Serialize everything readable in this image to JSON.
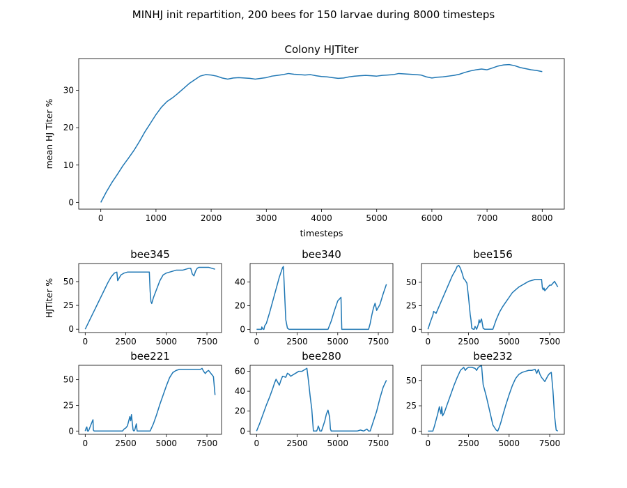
{
  "figure_title": "MINHJ init repartition, 200 bees for 150 larvae during 8000 timesteps",
  "chart_data": [
    {
      "id": "colony",
      "type": "line",
      "title": "Colony HJTiter",
      "xlabel": "timesteps",
      "ylabel": "mean HJ Titer %",
      "xlim": [
        -400,
        8400
      ],
      "ylim": [
        -1.8,
        38.5
      ],
      "xticks": [
        0,
        1000,
        2000,
        3000,
        4000,
        5000,
        6000,
        7000,
        8000
      ],
      "yticks": [
        0,
        10,
        20,
        30
      ],
      "color": "#1f77b4",
      "grid": false,
      "series": [
        {
          "x": [
            0,
            100,
            200,
            300,
            400,
            500,
            600,
            700,
            800,
            900,
            1000,
            1100,
            1200,
            1300,
            1400,
            1500,
            1600,
            1700,
            1800,
            1900,
            2000,
            2100,
            2200,
            2300,
            2400,
            2500,
            2600,
            2700,
            2800,
            2900,
            3000,
            3100,
            3200,
            3300,
            3400,
            3500,
            3600,
            3700,
            3800,
            3900,
            4000,
            4100,
            4200,
            4300,
            4400,
            4500,
            4600,
            4700,
            4800,
            4900,
            5000,
            5100,
            5200,
            5300,
            5400,
            5500,
            5600,
            5700,
            5800,
            5900,
            6000,
            6100,
            6200,
            6300,
            6400,
            6500,
            6600,
            6700,
            6800,
            6900,
            7000,
            7100,
            7200,
            7300,
            7400,
            7500,
            7600,
            7700,
            7800,
            7900,
            8000
          ],
          "y": [
            0,
            2.8,
            5.3,
            7.5,
            9.8,
            11.8,
            13.9,
            16.3,
            18.9,
            21.2,
            23.5,
            25.5,
            27,
            28,
            29.2,
            30.5,
            31.8,
            32.8,
            33.8,
            34.2,
            34.1,
            33.8,
            33.3,
            33,
            33.3,
            33.4,
            33.3,
            33.2,
            33,
            33.2,
            33.4,
            33.8,
            34,
            34.2,
            34.5,
            34.3,
            34.2,
            34.1,
            34.2,
            33.9,
            33.7,
            33.6,
            33.4,
            33.2,
            33.3,
            33.6,
            33.8,
            33.9,
            34,
            33.9,
            33.8,
            34,
            34.1,
            34.2,
            34.5,
            34.4,
            34.3,
            34.2,
            34.1,
            33.6,
            33.3,
            33.5,
            33.6,
            33.8,
            34,
            34.3,
            34.8,
            35.2,
            35.5,
            35.7,
            35.5,
            36,
            36.5,
            36.8,
            36.9,
            36.6,
            36.1,
            35.8,
            35.5,
            35.3,
            35
          ]
        }
      ]
    },
    {
      "id": "bee345",
      "type": "line",
      "title": "bee345",
      "ylabel": "HJTiter %",
      "xlim": [
        -400,
        8400
      ],
      "ylim": [
        -3.5,
        69
      ],
      "xticks": [
        0,
        2500,
        5000,
        7500
      ],
      "yticks": [
        0,
        25,
        50
      ],
      "color": "#1f77b4",
      "series": [
        {
          "x": [
            0,
            200,
            400,
            600,
            800,
            1000,
            1200,
            1400,
            1600,
            1800,
            1950,
            2000,
            2100,
            2200,
            2400,
            2600,
            2800,
            3000,
            3200,
            3400,
            3600,
            3800,
            3950,
            4000,
            4050,
            4100,
            4200,
            4400,
            4600,
            4800,
            5000,
            5200,
            5400,
            5600,
            5800,
            6000,
            6200,
            6400,
            6500,
            6600,
            6700,
            6800,
            6900,
            7000,
            7200,
            7400,
            7600,
            7800,
            8000
          ],
          "y": [
            0,
            7,
            14,
            21,
            28,
            35,
            42,
            49,
            55,
            59,
            60,
            51,
            54,
            57,
            59,
            60,
            60,
            60,
            60,
            60,
            60,
            60,
            60,
            40,
            29,
            27,
            33,
            42,
            51,
            57,
            59,
            60,
            61,
            62,
            62,
            62,
            63,
            64,
            64,
            58,
            56,
            61,
            64,
            65,
            65,
            65,
            65,
            64,
            63
          ]
        }
      ]
    },
    {
      "id": "bee340",
      "type": "line",
      "title": "bee340",
      "xlim": [
        -400,
        8400
      ],
      "ylim": [
        -2.7,
        55.5
      ],
      "xticks": [
        0,
        2500,
        5000,
        7500
      ],
      "yticks": [
        0,
        20,
        40
      ],
      "color": "#1f77b4",
      "series": [
        {
          "x": [
            0,
            300,
            320,
            400,
            450,
            500,
            600,
            800,
            1000,
            1200,
            1400,
            1600,
            1650,
            1800,
            1900,
            2000,
            2200,
            2400,
            2600,
            2800,
            3000,
            3200,
            3400,
            3600,
            3800,
            4000,
            4200,
            4400,
            4600,
            4800,
            5000,
            5200,
            5250,
            5400,
            5600,
            5800,
            6000,
            6200,
            6400,
            6600,
            6800,
            6900,
            7000,
            7100,
            7200,
            7300,
            7400,
            7600,
            7800,
            8000
          ],
          "y": [
            0,
            0,
            2,
            0,
            0,
            3,
            5,
            14,
            24,
            34,
            44,
            52,
            53,
            8,
            1,
            0,
            0,
            0,
            0,
            0,
            0,
            0,
            0,
            0,
            0,
            0,
            0,
            0,
            7,
            16,
            24,
            27,
            0,
            0,
            0,
            0,
            0,
            0,
            0,
            0,
            0,
            0,
            5,
            12,
            18,
            22,
            16,
            21,
            30,
            38
          ]
        }
      ]
    },
    {
      "id": "bee156",
      "type": "line",
      "title": "bee156",
      "xlim": [
        -400,
        8400
      ],
      "ylim": [
        -3.5,
        70
      ],
      "xticks": [
        0,
        2500,
        5000,
        7500
      ],
      "yticks": [
        0,
        25,
        50
      ],
      "color": "#1f77b4",
      "series": [
        {
          "x": [
            0,
            150,
            300,
            350,
            500,
            700,
            900,
            1100,
            1300,
            1500,
            1700,
            1800,
            1900,
            2000,
            2100,
            2200,
            2300,
            2400,
            2500,
            2600,
            2650,
            2700,
            2800,
            2850,
            2900,
            3000,
            3100,
            3150,
            3200,
            3300,
            3400,
            3500,
            3600,
            3700,
            3800,
            3900,
            4000,
            4200,
            4400,
            4600,
            4800,
            5000,
            5200,
            5400,
            5600,
            5800,
            6000,
            6200,
            6400,
            6600,
            6800,
            7000,
            7050,
            7100,
            7150,
            7200,
            7300,
            7400,
            7500,
            7600,
            7700,
            7800,
            7900,
            8000
          ],
          "y": [
            0,
            8,
            15,
            19,
            17,
            25,
            33,
            41,
            49,
            57,
            63,
            67,
            68,
            65,
            60,
            54,
            52,
            49,
            34,
            16,
            10,
            1,
            0,
            0,
            3,
            0,
            5,
            10,
            7,
            11,
            1,
            0,
            0,
            0,
            0,
            0,
            0,
            10,
            18,
            24,
            29,
            34,
            39,
            42,
            45,
            47,
            49,
            51,
            52,
            53,
            53,
            53,
            44,
            42,
            44,
            41,
            43,
            45,
            47,
            47,
            49,
            51,
            48,
            45
          ]
        }
      ]
    },
    {
      "id": "bee221",
      "type": "line",
      "title": "bee221",
      "xlim": [
        -400,
        8400
      ],
      "ylim": [
        -3.2,
        64
      ],
      "xticks": [
        0,
        2500,
        5000,
        7500
      ],
      "yticks": [
        0,
        25,
        50
      ],
      "color": "#1f77b4",
      "series": [
        {
          "x": [
            0,
            60,
            100,
            140,
            200,
            300,
            400,
            450,
            480,
            500,
            550,
            600,
            1000,
            1500,
            2000,
            2300,
            2400,
            2500,
            2600,
            2700,
            2750,
            2800,
            2850,
            2900,
            2950,
            3000,
            3050,
            3100,
            3150,
            3200,
            3300,
            3400,
            3600,
            3800,
            4000,
            4200,
            4400,
            4600,
            4800,
            5000,
            5200,
            5400,
            5600,
            5800,
            6000,
            6200,
            6400,
            6600,
            6800,
            7000,
            7100,
            7200,
            7300,
            7400,
            7500,
            7600,
            7700,
            7800,
            7900,
            8000
          ],
          "y": [
            0,
            3,
            4,
            0,
            0,
            4,
            8,
            10,
            11,
            1,
            0,
            0,
            0,
            0,
            0,
            0,
            2,
            3,
            5,
            11,
            14,
            10,
            16,
            8,
            1,
            0,
            1,
            4,
            7,
            0,
            0,
            0,
            0,
            0,
            0,
            7,
            16,
            26,
            35,
            44,
            52,
            57,
            59,
            60,
            60,
            60,
            60,
            60,
            60,
            60,
            60,
            61,
            58,
            56,
            58,
            59,
            57,
            55,
            53,
            35
          ]
        }
      ]
    },
    {
      "id": "bee280",
      "type": "line",
      "title": "bee280",
      "xlim": [
        -400,
        8400
      ],
      "ylim": [
        -3.3,
        66
      ],
      "xticks": [
        0,
        2500,
        5000,
        7500
      ],
      "yticks": [
        0,
        20,
        40,
        60
      ],
      "ytick_labels": [
        "0",
        "20",
        "40",
        "60"
      ],
      "color": "#1f77b4",
      "series": [
        {
          "x": [
            0,
            200,
            400,
            600,
            800,
            1000,
            1100,
            1200,
            1300,
            1400,
            1500,
            1600,
            1800,
            1900,
            2000,
            2100,
            2200,
            2400,
            2600,
            2800,
            2900,
            3000,
            3100,
            3200,
            3300,
            3400,
            3500,
            3600,
            3700,
            3750,
            3800,
            3850,
            3900,
            4000,
            4200,
            4300,
            4400,
            4500,
            4550,
            4600,
            4700,
            4800,
            5000,
            5200,
            5400,
            5600,
            5800,
            6000,
            6200,
            6400,
            6600,
            6800,
            6900,
            7000,
            7200,
            7400,
            7600,
            7800,
            8000
          ],
          "y": [
            0,
            8,
            17,
            26,
            34,
            43,
            48,
            52,
            49,
            46,
            51,
            55,
            54,
            58,
            57,
            55,
            56,
            58,
            60,
            60,
            61,
            62,
            63,
            50,
            35,
            22,
            0,
            0,
            0,
            2,
            5,
            3,
            0,
            0,
            10,
            17,
            21,
            14,
            2,
            0,
            0,
            0,
            0,
            0,
            0,
            0,
            0,
            0,
            0,
            1,
            0,
            2,
            0,
            0,
            10,
            20,
            33,
            44,
            51
          ]
        }
      ]
    },
    {
      "id": "bee232",
      "type": "line",
      "title": "bee232",
      "xlim": [
        -400,
        8400
      ],
      "ylim": [
        -3.2,
        65
      ],
      "xticks": [
        0,
        2500,
        5000,
        7500
      ],
      "yticks": [
        0,
        25,
        50
      ],
      "color": "#1f77b4",
      "series": [
        {
          "x": [
            0,
            100,
            300,
            400,
            500,
            600,
            700,
            800,
            850,
            900,
            1000,
            1200,
            1400,
            1600,
            1800,
            2000,
            2200,
            2300,
            2400,
            2500,
            2700,
            2900,
            3000,
            3100,
            3200,
            3300,
            3400,
            3600,
            3800,
            4000,
            4200,
            4300,
            4400,
            4500,
            4600,
            4800,
            5000,
            5200,
            5400,
            5600,
            5800,
            6000,
            6200,
            6400,
            6600,
            6700,
            6800,
            6900,
            7000,
            7200,
            7400,
            7500,
            7600,
            7700,
            7800,
            7900,
            8000
          ],
          "y": [
            0,
            0,
            0,
            5,
            11,
            17,
            24,
            17,
            24,
            15,
            18,
            27,
            36,
            45,
            53,
            60,
            63,
            60,
            62,
            63,
            63,
            62,
            60,
            63,
            64,
            65,
            46,
            34,
            20,
            6,
            1,
            0,
            4,
            9,
            15,
            26,
            36,
            45,
            52,
            56,
            58,
            59,
            60,
            60,
            61,
            57,
            61,
            56,
            53,
            49,
            55,
            57,
            58,
            40,
            15,
            1,
            0
          ]
        }
      ]
    }
  ]
}
